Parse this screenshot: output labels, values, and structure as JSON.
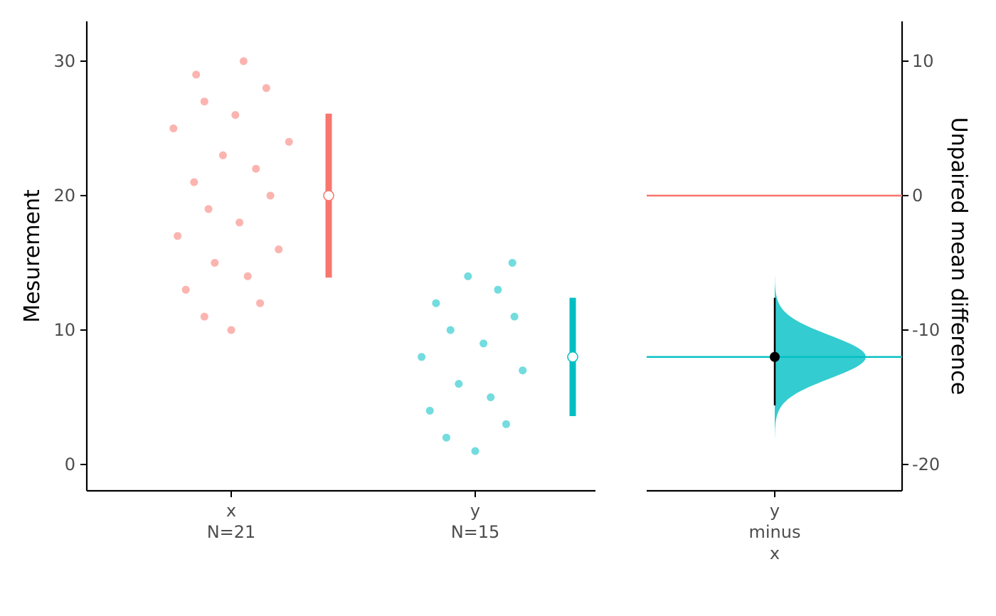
{
  "chart_data": {
    "type": "scatter",
    "left_panel": {
      "ylabel": "Mesurement",
      "ylim": [
        -2,
        33
      ],
      "yticks": [
        0,
        10,
        20,
        30
      ],
      "categories": [
        {
          "label": "x",
          "n_label": "N=21"
        },
        {
          "label": "y",
          "n_label": "N=15"
        }
      ],
      "series": [
        {
          "name": "x",
          "color": "#F8766D",
          "values": [
            25,
            17,
            13,
            29,
            21,
            27,
            11,
            19,
            15,
            23,
            10,
            26,
            18,
            30,
            14,
            22,
            12,
            28,
            20,
            16,
            24
          ],
          "jitter": [
            -0.28,
            -0.26,
            -0.22,
            -0.17,
            -0.18,
            -0.13,
            -0.13,
            -0.11,
            -0.08,
            -0.04,
            0,
            0.02,
            0.04,
            0.06,
            0.08,
            0.12,
            0.14,
            0.17,
            0.19,
            0.23,
            0.28
          ],
          "mean": 20,
          "sd_range": [
            13.9,
            26.1
          ]
        },
        {
          "name": "y",
          "color": "#00BFC4",
          "values": [
            8,
            4,
            12,
            2,
            10,
            6,
            14,
            1,
            9,
            5,
            13,
            3,
            15,
            11,
            7
          ],
          "jitter": [
            -0.26,
            -0.22,
            -0.19,
            -0.14,
            -0.12,
            -0.08,
            -0.035,
            0,
            0.04,
            0.075,
            0.11,
            0.15,
            0.18,
            0.19,
            0.23
          ],
          "mean": 8,
          "sd_range": [
            3.6,
            12.4
          ]
        }
      ]
    },
    "right_panel": {
      "ylabel": "Unpaired mean difference",
      "ylim": [
        -22,
        13
      ],
      "yticks": [
        10,
        0,
        -10,
        -20
      ],
      "ytick_labels": [
        "10",
        "0",
        "-10",
        "-20"
      ],
      "category_label": [
        "y",
        "minus",
        "x"
      ],
      "reference_line": {
        "value": 0,
        "color": "#F8766D"
      },
      "mean_difference": -12,
      "ci": [
        -15.6,
        -7.6
      ],
      "distribution": {
        "mean": -12,
        "sd": 1.6,
        "range": [
          -18,
          -6
        ],
        "color": "#00BFC4"
      }
    }
  }
}
